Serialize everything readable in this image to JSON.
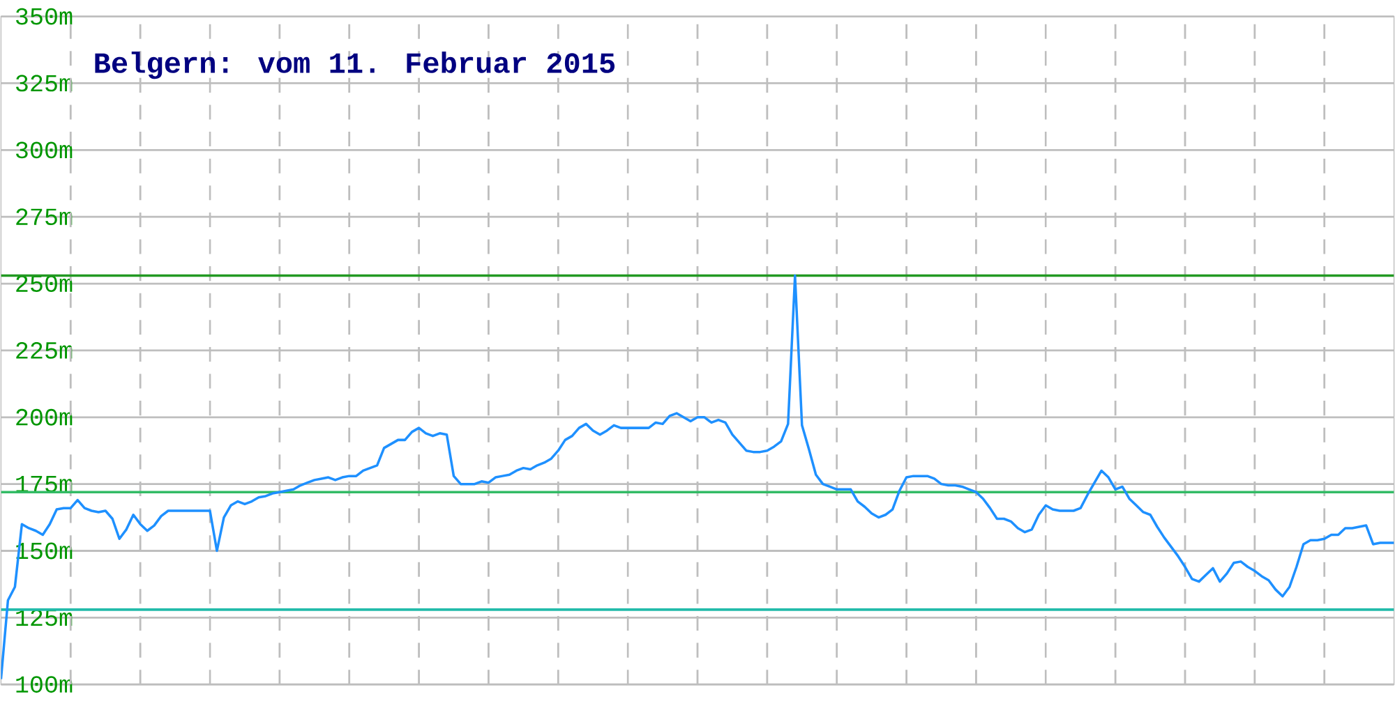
{
  "chart_data": {
    "type": "line",
    "title": "Belgern: vom 11. Februar 2015",
    "categories": [
      null,
      null,
      null,
      null,
      null,
      null,
      null,
      null,
      null,
      null,
      null,
      null,
      null,
      null,
      null,
      null,
      null,
      null,
      null,
      null,
      null,
      null,
      null,
      null,
      null,
      null,
      null,
      null,
      null,
      null,
      null,
      null,
      null,
      null,
      null,
      null,
      null,
      null,
      null,
      null,
      null,
      null,
      null,
      null,
      null,
      null,
      null,
      null,
      null,
      null,
      null,
      null,
      null,
      null,
      null,
      null,
      null,
      null,
      null,
      null,
      null,
      null,
      null,
      null,
      null,
      null,
      null,
      null,
      null,
      null,
      null,
      null,
      null,
      null,
      null,
      null,
      null,
      null,
      null,
      null,
      null,
      null,
      null,
      null,
      null,
      null,
      null,
      null,
      null,
      null,
      null,
      null,
      null,
      null,
      null,
      null,
      null,
      null,
      null,
      null,
      null,
      null,
      null,
      null,
      null,
      null,
      null,
      null,
      null,
      null,
      null,
      null,
      null,
      null,
      null,
      null,
      null,
      null,
      null,
      null,
      null,
      null,
      null,
      null,
      null,
      null,
      null,
      null,
      null,
      null,
      null,
      null,
      null,
      null,
      null,
      null,
      null,
      null,
      null,
      null,
      null,
      null,
      null,
      null,
      null,
      null,
      null,
      null,
      null,
      null,
      null,
      null,
      null,
      null,
      null,
      null,
      null,
      null,
      null,
      null,
      null,
      null,
      null,
      null,
      null,
      null,
      null,
      null,
      null,
      null,
      null,
      null,
      null,
      null,
      null,
      null,
      null,
      null,
      null,
      null,
      null,
      null,
      null,
      null,
      null,
      null,
      null,
      null,
      null,
      null,
      null,
      null,
      null,
      null,
      null,
      null,
      null,
      null,
      null,
      null,
      null
    ],
    "series": [
      {
        "color": "#1e90ff",
        "values": [
          102,
          131.5,
          136.5,
          160,
          158.5,
          157.5,
          156,
          160,
          165.5,
          166,
          166,
          169,
          166,
          165,
          164.5,
          165,
          162,
          154.5,
          158,
          163.5,
          160,
          157.5,
          159.5,
          163,
          165,
          165,
          165,
          165,
          165,
          165,
          165,
          150,
          162.5,
          167,
          168.5,
          167.5,
          168.5,
          170,
          170.5,
          171.5,
          172,
          172.5,
          173,
          174.5,
          175.5,
          176.5,
          177,
          177.5,
          176.5,
          177.5,
          178,
          178,
          180,
          181,
          182,
          188.5,
          190,
          191.5,
          191.5,
          194.5,
          196,
          194,
          193,
          194,
          193.5,
          178,
          175,
          175,
          175,
          176,
          175.5,
          177.5,
          178,
          178.5,
          180,
          181,
          180.5,
          182,
          183,
          184.5,
          187.5,
          191.5,
          193,
          196,
          197.5,
          195,
          193.5,
          195,
          197,
          196,
          196,
          196,
          196,
          196,
          198,
          197.5,
          200.5,
          201.5,
          200,
          198.5,
          200,
          200,
          198,
          199,
          198,
          193.5,
          190.5,
          187.5,
          187,
          187,
          187.5,
          189,
          191,
          197.5,
          253,
          197,
          188,
          178.5,
          175,
          174,
          173,
          173,
          173,
          168.5,
          166.5,
          164,
          162.5,
          163.5,
          165.5,
          172.5,
          177.5,
          178,
          178,
          178,
          177,
          175,
          174.5,
          174.5,
          174,
          173,
          172,
          169.5,
          166,
          162,
          162,
          161,
          158.5,
          157,
          158,
          163.5,
          167,
          165.5,
          165,
          165,
          165,
          166,
          171,
          175.5,
          180,
          177.5,
          173,
          174,
          169.5,
          167,
          164.5,
          163.5,
          159,
          155,
          151.5,
          148,
          144,
          139.5,
          138.5,
          141,
          143.5,
          138.5,
          141.5,
          145.5,
          146,
          144,
          142.5,
          140.5,
          139,
          135.5,
          133,
          136.5,
          144,
          152.5,
          154,
          154,
          154.5,
          156,
          156,
          158.5,
          158.5,
          159,
          159.5,
          152.5,
          153,
          153,
          153
        ]
      }
    ],
    "ylim": [
      100,
      350
    ],
    "yticks": [
      {
        "value": 100,
        "label": "100m"
      },
      {
        "value": 125,
        "label": "125m"
      },
      {
        "value": 150,
        "label": "150m"
      },
      {
        "value": 175,
        "label": "175m"
      },
      {
        "value": 200,
        "label": "200m"
      },
      {
        "value": 225,
        "label": "225m"
      },
      {
        "value": 250,
        "label": "250m"
      },
      {
        "value": 275,
        "label": "275m"
      },
      {
        "value": 300,
        "label": "300m"
      },
      {
        "value": 325,
        "label": "325m"
      },
      {
        "value": 350,
        "label": "350m"
      }
    ],
    "grid": true,
    "marker": "none",
    "line_style": "solid",
    "ref_lines": [
      {
        "axis": "y",
        "value": 253,
        "color": "#229922"
      },
      {
        "axis": "y",
        "value": 172,
        "color": "#33bb66"
      },
      {
        "axis": "y",
        "value": 128,
        "color": "#22bbaa"
      }
    ]
  }
}
